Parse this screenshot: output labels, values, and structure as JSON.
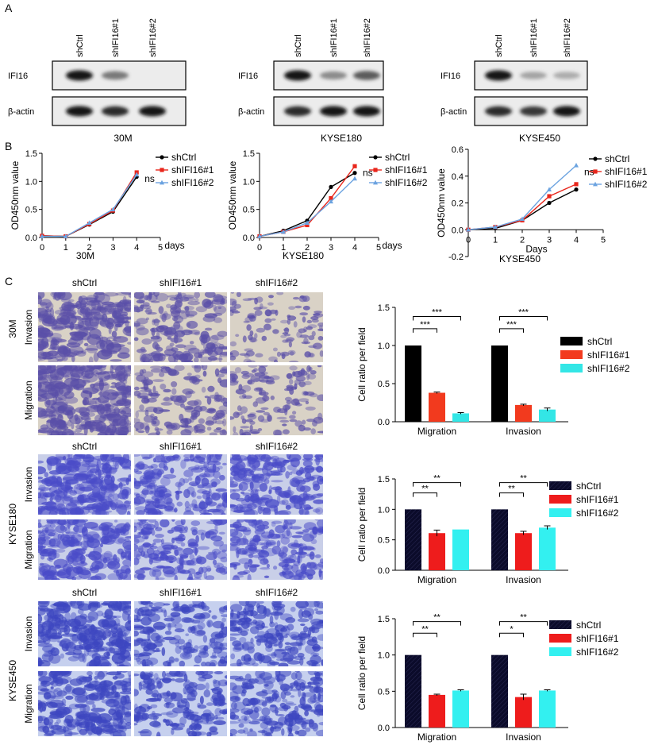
{
  "panel_letters": [
    "A",
    "B",
    "C"
  ],
  "western": [
    {
      "cell_line": "30M",
      "lanes": [
        "shCtrl",
        "shIFI16#1",
        "shIFI16#2"
      ],
      "rows": [
        {
          "label": "IFI16",
          "intensity": [
            1.0,
            0.55,
            0.0
          ]
        },
        {
          "label": "β-actin",
          "intensity": [
            1.0,
            0.9,
            1.0
          ]
        }
      ]
    },
    {
      "cell_line": "KYSE180",
      "lanes": [
        "shCtrl",
        "shIFI16#1",
        "shIFI16#2"
      ],
      "rows": [
        {
          "label": "IFI16",
          "intensity": [
            1.0,
            0.45,
            0.7
          ]
        },
        {
          "label": "β-actin",
          "intensity": [
            0.9,
            1.0,
            1.0
          ]
        }
      ]
    },
    {
      "cell_line": "KYSE450",
      "lanes": [
        "shCtrl",
        "shIFI16#1",
        "shIFI16#2"
      ],
      "rows": [
        {
          "label": "IFI16",
          "intensity": [
            1.0,
            0.3,
            0.25
          ]
        },
        {
          "label": "β-actin",
          "intensity": [
            0.9,
            0.85,
            1.0
          ]
        }
      ]
    }
  ],
  "chart_data": [
    {
      "type": "line",
      "panel": "B",
      "title": "30M",
      "xlabel": "days",
      "ylabel": "OD450nm value",
      "x": [
        0,
        1,
        2,
        3,
        4
      ],
      "xlim": [
        0,
        5
      ],
      "ylim": [
        0,
        1.5
      ],
      "xticks": [
        0,
        1,
        2,
        3,
        4,
        5
      ],
      "yticks": [
        0.0,
        0.5,
        1.0,
        1.5
      ],
      "annotation": "ns",
      "legend": "top-right",
      "series": [
        {
          "name": "shCtrl",
          "values": [
            0.03,
            0.02,
            0.23,
            0.46,
            1.08
          ],
          "color": "#000000",
          "marker": "circle"
        },
        {
          "name": "shIFI16#1",
          "values": [
            0.03,
            0.02,
            0.24,
            0.48,
            1.16
          ],
          "color": "#e8261c",
          "marker": "square"
        },
        {
          "name": "shIFI16#2",
          "values": [
            0.02,
            0.02,
            0.26,
            0.5,
            1.12
          ],
          "color": "#6ba3e0",
          "marker": "triangle"
        }
      ]
    },
    {
      "type": "line",
      "panel": "B",
      "title": "KYSE180",
      "xlabel": "days",
      "ylabel": "OD450nm value",
      "x": [
        0,
        1,
        2,
        3,
        4
      ],
      "xlim": [
        0,
        5
      ],
      "ylim": [
        0,
        1.5
      ],
      "xticks": [
        0,
        1,
        2,
        3,
        4,
        5
      ],
      "yticks": [
        0.0,
        0.5,
        1.0,
        1.5
      ],
      "annotation": "ns",
      "legend": "top-right",
      "series": [
        {
          "name": "shCtrl",
          "values": [
            0.02,
            0.12,
            0.3,
            0.9,
            1.15
          ],
          "color": "#000000",
          "marker": "circle"
        },
        {
          "name": "shIFI16#1",
          "values": [
            0.02,
            0.1,
            0.22,
            0.7,
            1.27
          ],
          "color": "#e8261c",
          "marker": "square"
        },
        {
          "name": "shIFI16#2",
          "values": [
            0.02,
            0.1,
            0.26,
            0.64,
            1.05
          ],
          "color": "#6ba3e0",
          "marker": "triangle"
        }
      ]
    },
    {
      "type": "line",
      "panel": "B",
      "title": "KYSE450",
      "xlabel": "Days",
      "ylabel": "OD450nm value",
      "x": [
        0,
        1,
        2,
        3,
        4
      ],
      "xlim": [
        0,
        5
      ],
      "ylim": [
        -0.2,
        0.6
      ],
      "xticks": [
        0,
        1,
        2,
        3,
        4,
        5
      ],
      "yticks": [
        -0.2,
        0.0,
        0.2,
        0.4,
        0.6
      ],
      "annotation": "ns",
      "legend": "top-right",
      "series": [
        {
          "name": "shCtrl",
          "values": [
            0.0,
            0.01,
            0.07,
            0.2,
            0.3
          ],
          "color": "#000000",
          "marker": "circle"
        },
        {
          "name": "shIFI16#1",
          "values": [
            0.0,
            0.02,
            0.07,
            0.25,
            0.34
          ],
          "color": "#e8261c",
          "marker": "square"
        },
        {
          "name": "shIFI16#2",
          "values": [
            0.0,
            0.02,
            0.08,
            0.3,
            0.48
          ],
          "color": "#6ba3e0",
          "marker": "triangle"
        }
      ]
    },
    {
      "type": "bar",
      "panel": "C",
      "cell_line": "30M",
      "ylabel": "Cell ratio per field",
      "categories": [
        "Migration",
        "Invasion"
      ],
      "ylim": [
        0,
        1.5
      ],
      "yticks": [
        0.0,
        0.5,
        1.0,
        1.5
      ],
      "legend": "right",
      "series": [
        {
          "name": "shCtrl",
          "values": [
            1.0,
            1.0
          ],
          "errors": [
            0,
            0
          ],
          "color": "#000000"
        },
        {
          "name": "shIFI16#1",
          "values": [
            0.38,
            0.22
          ],
          "errors": [
            0.01,
            0.01
          ],
          "color": "#f23a1e"
        },
        {
          "name": "shIFI16#2",
          "values": [
            0.11,
            0.16
          ],
          "errors": [
            0.01,
            0.02
          ],
          "color": "#33e6e6"
        }
      ],
      "significance": [
        {
          "category": "Migration",
          "from": 0,
          "to": 1,
          "label": "***",
          "level": 1.22
        },
        {
          "category": "Migration",
          "from": 0,
          "to": 2,
          "label": "***",
          "level": 1.38
        },
        {
          "category": "Invasion",
          "from": 0,
          "to": 1,
          "label": "***",
          "level": 1.22
        },
        {
          "category": "Invasion",
          "from": 0,
          "to": 2,
          "label": "***",
          "level": 1.38
        }
      ]
    },
    {
      "type": "bar",
      "panel": "C",
      "cell_line": "KYSE180",
      "ylabel": "Cell ratio per field",
      "categories": [
        "Migration",
        "Invasion"
      ],
      "ylim": [
        0,
        1.5
      ],
      "yticks": [
        0.0,
        0.5,
        1.0,
        1.5
      ],
      "legend": "right",
      "series": [
        {
          "name": "shCtrl",
          "values": [
            1.0,
            1.0
          ],
          "errors": [
            0,
            0
          ],
          "color": "#0b0b2a"
        },
        {
          "name": "shIFI16#1",
          "values": [
            0.61,
            0.61
          ],
          "errors": [
            0.05,
            0.03
          ],
          "color": "#ee1c1c"
        },
        {
          "name": "shIFI16#2",
          "values": [
            0.67,
            0.7
          ],
          "errors": [
            0.0,
            0.03
          ],
          "color": "#33f0f0"
        }
      ],
      "significance": [
        {
          "category": "Migration",
          "from": 0,
          "to": 1,
          "label": "**",
          "level": 1.27
        },
        {
          "category": "Migration",
          "from": 0,
          "to": 2,
          "label": "**",
          "level": 1.44
        },
        {
          "category": "Invasion",
          "from": 0,
          "to": 1,
          "label": "**",
          "level": 1.27
        },
        {
          "category": "Invasion",
          "from": 0,
          "to": 2,
          "label": "**",
          "level": 1.44
        }
      ]
    },
    {
      "type": "bar",
      "panel": "C",
      "cell_line": "KYSE450",
      "ylabel": "Cell ratio per field",
      "categories": [
        "Migration",
        "Invasion"
      ],
      "ylim": [
        0,
        1.5
      ],
      "yticks": [
        0.0,
        0.5,
        1.0,
        1.5
      ],
      "legend": "right",
      "series": [
        {
          "name": "shCtrl",
          "values": [
            1.0,
            1.0
          ],
          "errors": [
            0,
            0
          ],
          "color": "#0b0b2a"
        },
        {
          "name": "shIFI16#1",
          "values": [
            0.45,
            0.42
          ],
          "errors": [
            0.01,
            0.04
          ],
          "color": "#ee1c1c"
        },
        {
          "name": "shIFI16#2",
          "values": [
            0.51,
            0.51
          ],
          "errors": [
            0.01,
            0.01
          ],
          "color": "#33f0f0"
        }
      ],
      "significance": [
        {
          "category": "Migration",
          "from": 0,
          "to": 1,
          "label": "**",
          "level": 1.3
        },
        {
          "category": "Migration",
          "from": 0,
          "to": 2,
          "label": "**",
          "level": 1.46
        },
        {
          "category": "Invasion",
          "from": 0,
          "to": 1,
          "label": "*",
          "level": 1.3
        },
        {
          "category": "Invasion",
          "from": 0,
          "to": 2,
          "label": "**",
          "level": 1.46
        }
      ]
    }
  ],
  "transwell": [
    {
      "cell_line": "30M",
      "columns": [
        "shCtrl",
        "shIFI16#1",
        "shIFI16#2"
      ],
      "rows": [
        "Invasion",
        "Migration"
      ],
      "density": [
        [
          0.85,
          0.55,
          0.25
        ],
        [
          0.95,
          0.45,
          0.35
        ]
      ],
      "stain_color": "#5a4fa8",
      "background": "#d9d2c6"
    },
    {
      "cell_line": "KYSE180",
      "columns": [
        "shCtrl",
        "shIFI16#1",
        "shIFI16#2"
      ],
      "rows": [
        "Invasion",
        "Migration"
      ],
      "density": [
        [
          0.85,
          0.6,
          0.65
        ],
        [
          0.7,
          0.5,
          0.55
        ]
      ],
      "stain_color": "#4a4cc8",
      "background": "#c9cfe8"
    },
    {
      "cell_line": "KYSE450",
      "columns": [
        "shCtrl",
        "shIFI16#1",
        "shIFI16#2"
      ],
      "rows": [
        "Invasion",
        "Migration"
      ],
      "density": [
        [
          0.85,
          0.55,
          0.6
        ],
        [
          0.8,
          0.55,
          0.6
        ]
      ],
      "stain_color": "#3d46c0",
      "background": "#c6d0ee"
    }
  ]
}
